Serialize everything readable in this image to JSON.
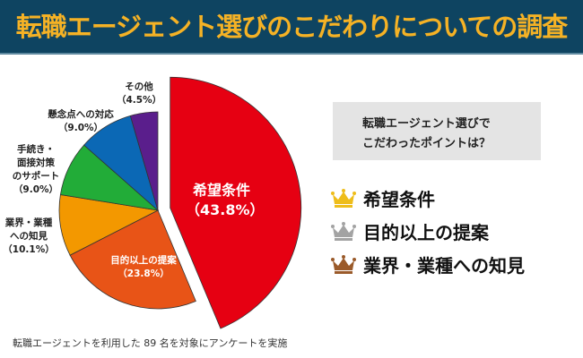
{
  "title": "転職エージェント選びのこだわりについての調査",
  "question": {
    "line1": "転職エージェント選びで",
    "line2": "こだわったポイントは？"
  },
  "ranking": [
    {
      "label": "希望条件",
      "icon": "gold-crown-icon",
      "color": "#eebd1a"
    },
    {
      "label": "目的以上の提案",
      "icon": "silver-crown-icon",
      "color": "#a3a3a3"
    },
    {
      "label": "業界・業種への知見",
      "icon": "bronze-crown-icon",
      "color": "#9a5a2a"
    }
  ],
  "footnote": "転職エージェントを利用した 89 名を対象にアンケートを実施",
  "chart_data": {
    "type": "pie",
    "start": "12 o'clock, clockwise",
    "exploded": "希望条件",
    "slices": [
      {
        "name": "希望条件",
        "value": 43.8,
        "label": "（43.8%）",
        "color": "#e60012"
      },
      {
        "name": "目的以上の提案",
        "value": 23.8,
        "label": "（23.8%）",
        "color": "#e85417"
      },
      {
        "name": "業界・業種への知見",
        "display_lines": [
          "業界・業種",
          "への知見"
        ],
        "value": 10.1,
        "label": "（10.1%）",
        "color": "#f39800"
      },
      {
        "name": "手続き・面接対策のサポート",
        "display_lines": [
          "手続き・",
          "面接対策",
          "のサポート"
        ],
        "value": 9.0,
        "label": "（9.0%）",
        "color": "#22ac38"
      },
      {
        "name": "懸念点への対応",
        "value": 9.0,
        "label": "（9.0%）",
        "color": "#0b68b5"
      },
      {
        "name": "その他",
        "value": 4.5,
        "label": "（4.5%）",
        "color": "#5a1e8c"
      }
    ]
  }
}
